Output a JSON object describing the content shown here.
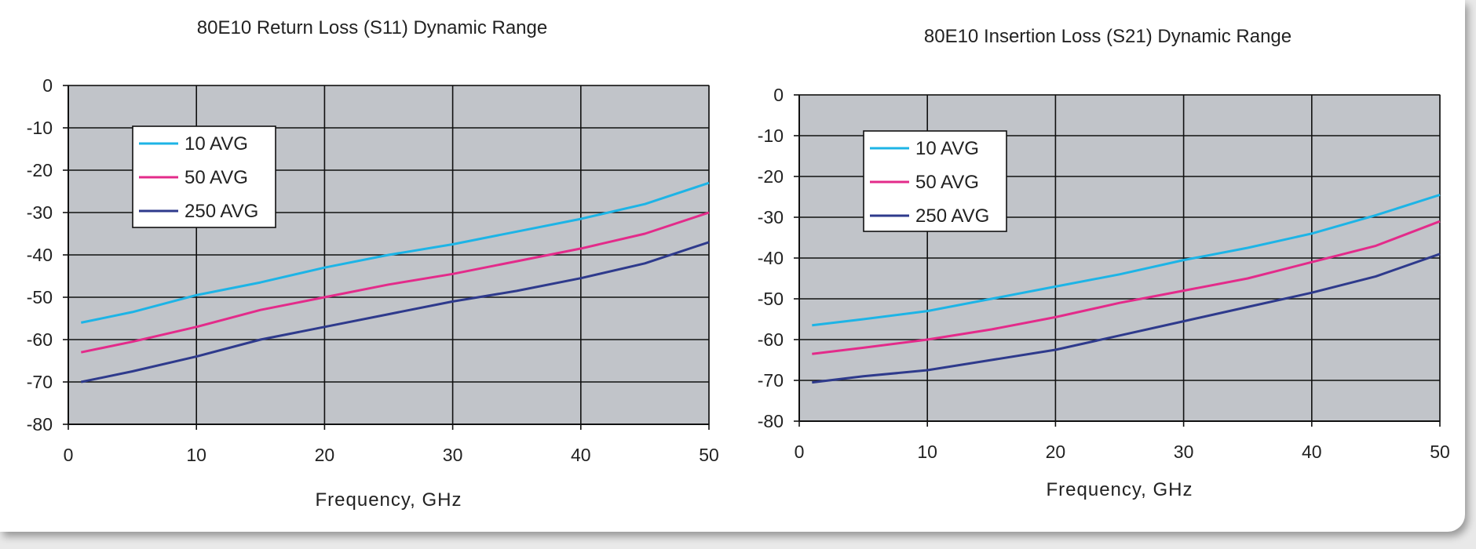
{
  "chart_data": [
    {
      "type": "line",
      "title": "80E10 Return Loss (S11) Dynamic Range",
      "xlabel": "Frequency, GHz",
      "ylabel": "",
      "xlim": [
        0,
        50
      ],
      "ylim": [
        -80,
        0
      ],
      "grid": true,
      "legend_position": "top-left",
      "x_ticks": [
        0,
        10,
        20,
        30,
        40,
        50
      ],
      "y_ticks": [
        0,
        -10,
        -20,
        -30,
        -40,
        -50,
        -60,
        -70,
        -80
      ],
      "plot_bg": "#c1c4c9",
      "x": [
        1,
        5,
        10,
        15,
        20,
        25,
        30,
        35,
        40,
        45,
        50
      ],
      "series": [
        {
          "name": "10 AVG",
          "color": "#1db4e6",
          "values": [
            -56,
            -53.5,
            -49.5,
            -46.5,
            -43,
            -40,
            -37.5,
            -34.5,
            -31.5,
            -28,
            -23
          ]
        },
        {
          "name": "50 AVG",
          "color": "#e32b8a",
          "values": [
            -63,
            -60.5,
            -57,
            -53,
            -50,
            -47,
            -44.5,
            -41.5,
            -38.5,
            -35,
            -30
          ]
        },
        {
          "name": "250 AVG",
          "color": "#2e3a8c",
          "values": [
            -70,
            -67.5,
            -64,
            -60,
            -57,
            -54,
            -51,
            -48.5,
            -45.5,
            -42,
            -37
          ]
        }
      ]
    },
    {
      "type": "line",
      "title": "80E10 Insertion Loss (S21) Dynamic Range",
      "xlabel": "Frequency, GHz",
      "ylabel": "",
      "xlim": [
        0,
        50
      ],
      "ylim": [
        -80,
        0
      ],
      "grid": true,
      "legend_position": "top-left",
      "x_ticks": [
        0,
        10,
        20,
        30,
        40,
        50
      ],
      "y_ticks": [
        0,
        -10,
        -20,
        -30,
        -40,
        -50,
        -60,
        -70,
        -80
      ],
      "plot_bg": "#c1c4c9",
      "x": [
        1,
        5,
        10,
        15,
        20,
        25,
        30,
        35,
        40,
        45,
        50
      ],
      "series": [
        {
          "name": "10 AVG",
          "color": "#1db4e6",
          "values": [
            -56.5,
            -55,
            -53,
            -50,
            -47,
            -44,
            -40.5,
            -37.5,
            -34,
            -29.5,
            -24.5
          ]
        },
        {
          "name": "50 AVG",
          "color": "#e32b8a",
          "values": [
            -63.5,
            -62,
            -60,
            -57.5,
            -54.5,
            -51,
            -48,
            -45,
            -41,
            -37,
            -31
          ]
        },
        {
          "name": "250 AVG",
          "color": "#2e3a8c",
          "values": [
            -70.5,
            -69,
            -67.5,
            -65,
            -62.5,
            -59,
            -55.5,
            -52,
            -48.5,
            -44.5,
            -39
          ]
        }
      ]
    }
  ]
}
